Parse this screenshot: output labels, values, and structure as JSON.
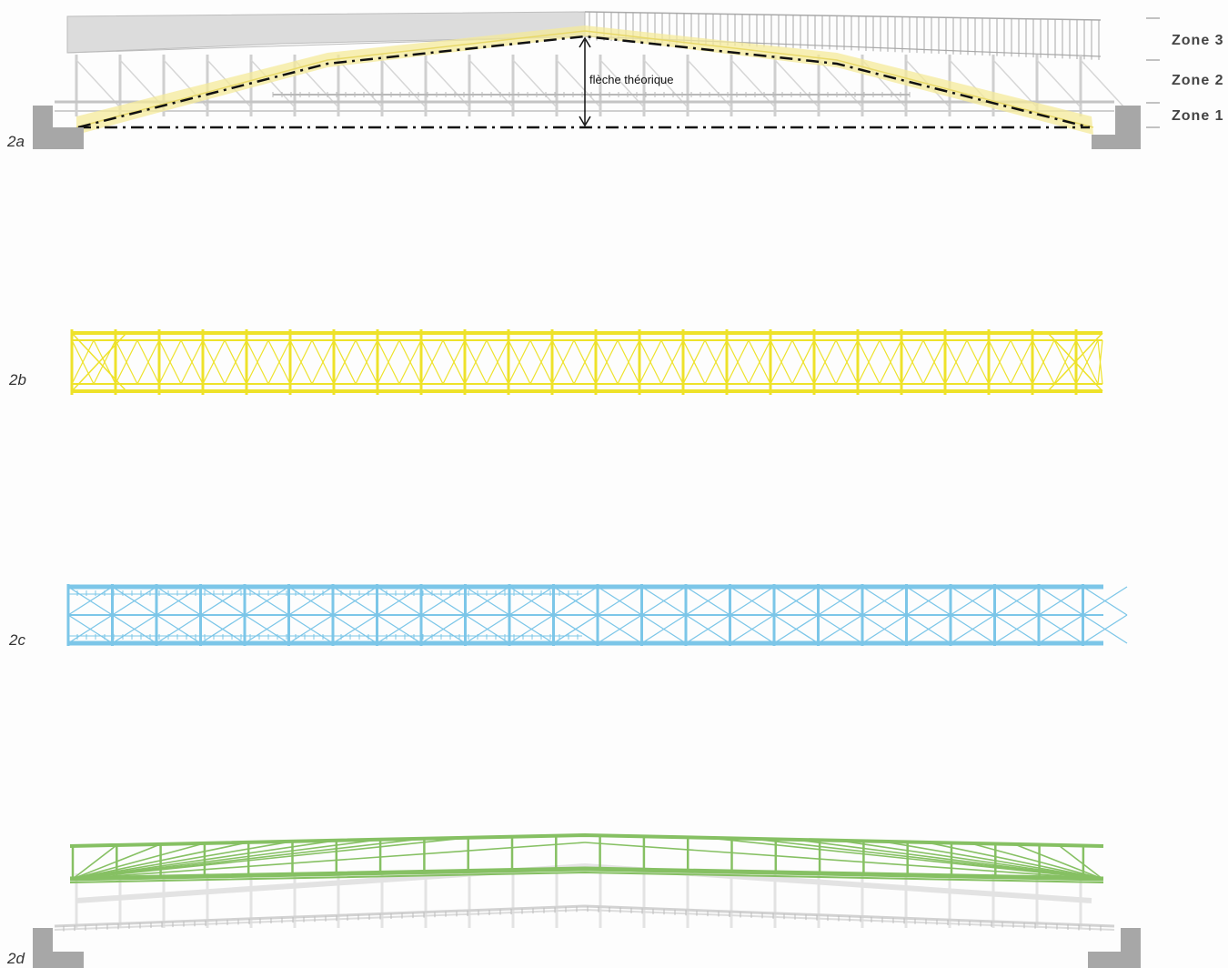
{
  "panels": {
    "a": {
      "label": "2a"
    },
    "b": {
      "label": "2b"
    },
    "c": {
      "label": "2c"
    },
    "d": {
      "label": "2d"
    }
  },
  "annotation": {
    "fleche": "flèche théorique"
  },
  "zones": [
    "Zone 3",
    "Zone 2",
    "Zone 1"
  ],
  "colors": {
    "yellow_band": "#f4ea9a",
    "yellow_truss": "#eee22a",
    "blue_truss": "#7cc6e8",
    "green_truss": "#86c063",
    "gray_structure": "#c9c9c9",
    "abutment": "#a7a7a7"
  }
}
